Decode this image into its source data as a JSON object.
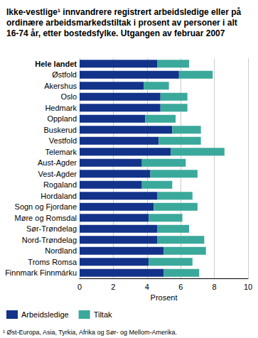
{
  "chart_data": {
    "type": "bar",
    "orientation": "horizontal",
    "stacked": true,
    "title": "Ikke-vestlige¹ innvandrere registrert arbeidsledige eller på ordinære arbeidsmarkedstiltak i prosent av personer i alt 16-74 år, etter bostedsfylke. Utgangen av februar 2007",
    "xlabel": "Prosent",
    "footnote": "¹ Øst-Europa, Asia, Tyrkia, Afrika og Sør- og Mellom-Amerika.",
    "categories": [
      "Hele landet",
      "Østfold",
      "Akershus",
      "Oslo",
      "Hedmark",
      "Oppland",
      "Buskerud",
      "Vestfold",
      "Telemark",
      "Aust-Agder",
      "Vest-Agder",
      "Rogaland",
      "Hordaland",
      "Sogn og Fjordane",
      "Møre og Romsdal",
      "Sør-Trøndelag",
      "Nord-Trøndelag",
      "Nordland",
      "Troms Romsa",
      "Finnmark Finnmárku"
    ],
    "series": [
      {
        "name": "Arbeidsledige",
        "color": "#13338a",
        "values": [
          4.6,
          5.9,
          3.8,
          4.8,
          4.8,
          3.9,
          5.5,
          4.7,
          5.4,
          3.7,
          4.2,
          3.7,
          4.6,
          4.4,
          4.1,
          4.6,
          4.6,
          5.0,
          4.1,
          5.0
        ]
      },
      {
        "name": "Tiltak",
        "color": "#3aa99b",
        "values": [
          1.9,
          2.0,
          1.5,
          1.6,
          1.6,
          1.8,
          1.7,
          2.5,
          3.2,
          2.6,
          2.8,
          1.8,
          2.1,
          2.6,
          2.0,
          1.9,
          2.8,
          2.5,
          2.6,
          2.1
        ]
      }
    ],
    "xlim": [
      0,
      10
    ],
    "xticks": [
      0,
      2,
      4,
      6,
      8,
      10
    ],
    "grid": true,
    "legend": "bottom"
  }
}
